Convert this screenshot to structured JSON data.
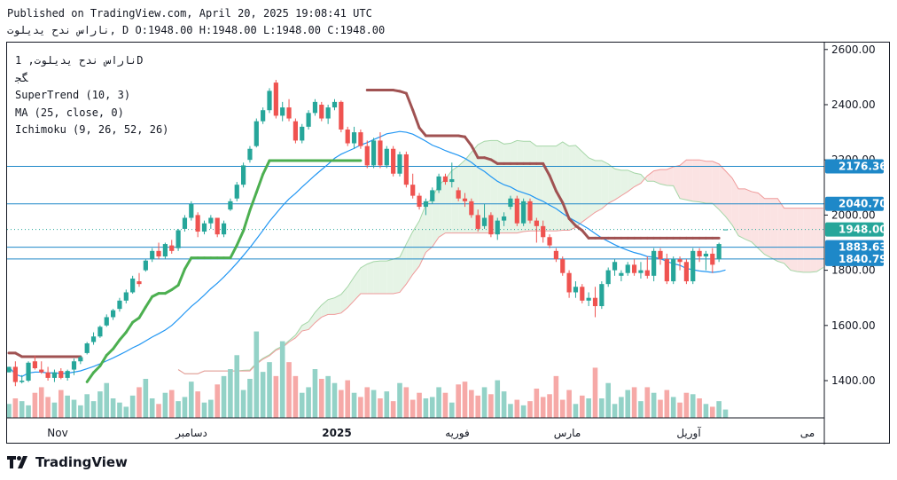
{
  "header": {
    "published": "Published on TradingView.com, April 20, 2025 19:08:41 UTC",
    "ohlc_line": "ناراس ندح يديلوت, D O:1948.00 H:1948.00 L:1948.00 C:1948.00"
  },
  "legend": {
    "symbol": "ناراس ندح يديلوت, 1D",
    "exchange": "ﮕﺠ",
    "indicators": [
      "SuperTrend (10, 3)",
      "MA (25, close, 0)",
      "Ichimoku (9, 26, 52, 26)"
    ]
  },
  "footer": {
    "brand": "TradingView"
  },
  "colors": {
    "up": "#26a69a",
    "down": "#ef5350",
    "vol_up": "#93d2c7",
    "vol_down": "#f6a9a7",
    "supertrend_up": "#4caf50",
    "supertrend_down": "#a05252",
    "ma": "#2196f3",
    "hline": "#1e88c8",
    "cloud_green": "#e6f4e6",
    "cloud_red": "#fbe3e3",
    "cloud_green_line": "#a5d6a7",
    "cloud_red_line": "#ef9a9a",
    "last_price": "#26a69a"
  },
  "chart_data": {
    "type": "candlestick",
    "y_axis": {
      "ticks": [
        1400,
        1600,
        1800,
        2000,
        2200,
        2400,
        2600
      ],
      "ylim": [
        1265,
        2625
      ],
      "position": "right"
    },
    "x_axis": {
      "labels": [
        "Nov",
        "دسامبر",
        "2025",
        "فوریه",
        "مارس",
        "آوریل",
        "می"
      ]
    },
    "price_labels": [
      {
        "value": 2176.36,
        "text": "2176.36"
      },
      {
        "value": 2040.7,
        "text": "2040.70"
      },
      {
        "value": 1948.0,
        "text": "1948.00",
        "last": true
      },
      {
        "value": 1883.63,
        "text": "1883.63"
      },
      {
        "value": 1840.79,
        "text": "1840.79"
      }
    ],
    "horizontal_lines": [
      2176.36,
      2040.7,
      1883.63,
      1840.79
    ],
    "candles": [
      [
        1430,
        1450,
        1430,
        1450
      ],
      [
        1450,
        1470,
        1380,
        1395
      ],
      [
        1395,
        1420,
        1390,
        1400
      ],
      [
        1400,
        1470,
        1395,
        1465
      ],
      [
        1470,
        1490,
        1440,
        1445
      ],
      [
        1440,
        1470,
        1425,
        1430
      ],
      [
        1430,
        1450,
        1400,
        1410
      ],
      [
        1410,
        1440,
        1395,
        1430
      ],
      [
        1435,
        1445,
        1405,
        1410
      ],
      [
        1410,
        1440,
        1400,
        1435
      ],
      [
        1440,
        1480,
        1420,
        1470
      ],
      [
        1470,
        1490,
        1460,
        1485
      ],
      [
        1500,
        1540,
        1495,
        1535
      ],
      [
        1540,
        1575,
        1530,
        1560
      ],
      [
        1560,
        1600,
        1555,
        1595
      ],
      [
        1600,
        1640,
        1595,
        1630
      ],
      [
        1630,
        1660,
        1620,
        1655
      ],
      [
        1660,
        1700,
        1650,
        1690
      ],
      [
        1690,
        1730,
        1680,
        1720
      ],
      [
        1720,
        1780,
        1715,
        1770
      ],
      [
        1760,
        1790,
        1740,
        1750
      ],
      [
        1800,
        1840,
        1795,
        1835
      ],
      [
        1840,
        1880,
        1830,
        1870
      ],
      [
        1870,
        1900,
        1840,
        1850
      ],
      [
        1850,
        1900,
        1840,
        1895
      ],
      [
        1890,
        1910,
        1860,
        1870
      ],
      [
        1880,
        1950,
        1870,
        1945
      ],
      [
        1950,
        2000,
        1940,
        1990
      ],
      [
        1990,
        2050,
        1980,
        2040
      ],
      [
        2000,
        2010,
        1920,
        1940
      ],
      [
        1940,
        1980,
        1930,
        1970
      ],
      [
        1970,
        2000,
        1950,
        1990
      ],
      [
        1990,
        1990,
        1920,
        1930
      ],
      [
        1930,
        1980,
        1920,
        1970
      ],
      [
        2020,
        2060,
        2015,
        2050
      ],
      [
        2060,
        2120,
        2050,
        2110
      ],
      [
        2110,
        2190,
        2100,
        2180
      ],
      [
        2200,
        2250,
        2190,
        2240
      ],
      [
        2250,
        2350,
        2245,
        2340
      ],
      [
        2340,
        2390,
        2330,
        2380
      ],
      [
        2380,
        2460,
        2370,
        2450
      ],
      [
        2480,
        2490,
        2350,
        2360
      ],
      [
        2360,
        2410,
        2340,
        2390
      ],
      [
        2390,
        2420,
        2340,
        2350
      ],
      [
        2340,
        2350,
        2260,
        2270
      ],
      [
        2270,
        2330,
        2260,
        2320
      ],
      [
        2320,
        2380,
        2310,
        2370
      ],
      [
        2370,
        2420,
        2360,
        2410
      ],
      [
        2400,
        2410,
        2340,
        2350
      ],
      [
        2350,
        2400,
        2330,
        2390
      ],
      [
        2390,
        2420,
        2380,
        2410
      ],
      [
        2410,
        2415,
        2300,
        2310
      ],
      [
        2310,
        2320,
        2250,
        2260
      ],
      [
        2260,
        2320,
        2240,
        2300
      ],
      [
        2300,
        2310,
        2240,
        2250
      ],
      [
        2250,
        2270,
        2170,
        2180
      ],
      [
        2180,
        2280,
        2170,
        2270
      ],
      [
        2270,
        2300,
        2170,
        2180
      ],
      [
        2180,
        2250,
        2170,
        2240
      ],
      [
        2240,
        2250,
        2140,
        2150
      ],
      [
        2150,
        2230,
        2140,
        2220
      ],
      [
        2220,
        2230,
        2100,
        2110
      ],
      [
        2110,
        2150,
        2060,
        2070
      ],
      [
        2070,
        2080,
        2020,
        2030
      ],
      [
        2030,
        2060,
        2000,
        2050
      ],
      [
        2050,
        2100,
        2040,
        2090
      ],
      [
        2090,
        2150,
        2080,
        2140
      ],
      [
        2140,
        2150,
        2110,
        2120
      ],
      [
        2120,
        2190,
        2100,
        2130
      ],
      [
        2090,
        2100,
        2050,
        2060
      ],
      [
        2060,
        2080,
        2030,
        2050
      ],
      [
        2050,
        2060,
        1990,
        2000
      ],
      [
        2000,
        2020,
        1940,
        1950
      ],
      [
        1960,
        2040,
        1950,
        1990
      ],
      [
        2000,
        2010,
        1920,
        1930
      ],
      [
        1930,
        1990,
        1910,
        1980
      ],
      [
        1980,
        2010,
        1960,
        1995
      ],
      [
        2030,
        2070,
        2020,
        2060
      ],
      [
        2060,
        2070,
        1960,
        1970
      ],
      [
        1970,
        2060,
        1960,
        2050
      ],
      [
        2050,
        2060,
        1970,
        1980
      ],
      [
        1980,
        1990,
        1900,
        1960
      ],
      [
        1960,
        1980,
        1900,
        1920
      ],
      [
        1920,
        1930,
        1880,
        1890
      ],
      [
        1870,
        1880,
        1830,
        1840
      ],
      [
        1840,
        1850,
        1780,
        1790
      ],
      [
        1790,
        1800,
        1700,
        1720
      ],
      [
        1720,
        1760,
        1700,
        1740
      ],
      [
        1740,
        1750,
        1680,
        1690
      ],
      [
        1690,
        1720,
        1670,
        1700
      ],
      [
        1700,
        1740,
        1630,
        1670
      ],
      [
        1670,
        1760,
        1660,
        1750
      ],
      [
        1750,
        1810,
        1740,
        1800
      ],
      [
        1800,
        1840,
        1780,
        1830
      ],
      [
        1780,
        1800,
        1760,
        1790
      ],
      [
        1790,
        1830,
        1780,
        1820
      ],
      [
        1820,
        1840,
        1780,
        1790
      ],
      [
        1790,
        1830,
        1770,
        1800
      ],
      [
        1800,
        1850,
        1770,
        1780
      ],
      [
        1780,
        1880,
        1760,
        1870
      ],
      [
        1870,
        1880,
        1820,
        1840
      ],
      [
        1840,
        1860,
        1750,
        1760
      ],
      [
        1760,
        1850,
        1750,
        1840
      ],
      [
        1840,
        1850,
        1800,
        1830
      ],
      [
        1830,
        1840,
        1750,
        1760
      ],
      [
        1760,
        1880,
        1750,
        1870
      ],
      [
        1870,
        1880,
        1830,
        1850
      ],
      [
        1850,
        1870,
        1800,
        1860
      ],
      [
        1860,
        1880,
        1790,
        1820
      ],
      [
        1840,
        1900,
        1830,
        1895
      ],
      [
        1948,
        1948,
        1948,
        1948
      ]
    ],
    "volumes": [
      10,
      14,
      12,
      9,
      18,
      22,
      15,
      11,
      20,
      16,
      13,
      9,
      17,
      12,
      19,
      25,
      14,
      11,
      8,
      16,
      22,
      28,
      14,
      10,
      18,
      20,
      12,
      15,
      26,
      19,
      11,
      13,
      24,
      30,
      35,
      45,
      20,
      28,
      62,
      33,
      40,
      30,
      55,
      40,
      30,
      18,
      22,
      35,
      28,
      30,
      25,
      20,
      27,
      18,
      15,
      22,
      20,
      14,
      19,
      12,
      25,
      22,
      13,
      18,
      14,
      15,
      22,
      18,
      11,
      24,
      26,
      20,
      16,
      22,
      17,
      27,
      19,
      10,
      13,
      9,
      12,
      21,
      15,
      17,
      30,
      13,
      20,
      10,
      16,
      14,
      36,
      14,
      25,
      10,
      15,
      20,
      22,
      12,
      22,
      18,
      13,
      20,
      15,
      11,
      18,
      17,
      14,
      10,
      8,
      12,
      6,
      5
    ]
  }
}
